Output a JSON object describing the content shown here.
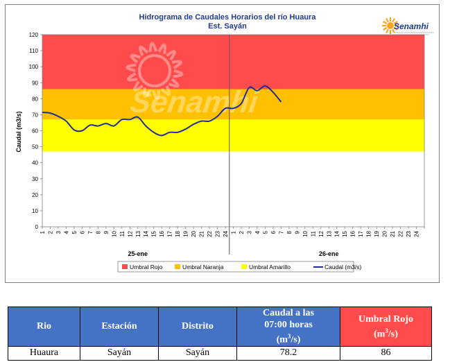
{
  "chart_data": {
    "type": "line",
    "title": "Hidrograma  de Caudales Horarios  del río Huaura",
    "subtitle": "Est. Sayán",
    "ylabel": "Caudal (m3/s)",
    "xlabel": "",
    "ylim": [
      0,
      120
    ],
    "yticks": [
      0,
      10,
      20,
      30,
      40,
      50,
      60,
      70,
      80,
      90,
      100,
      110,
      120
    ],
    "xticks": [
      "1",
      "2",
      "3",
      "4",
      "5",
      "6",
      "7",
      "8",
      "9",
      "10",
      "11",
      "12",
      "13",
      "14",
      "15",
      "16",
      "17",
      "18",
      "19",
      "20",
      "21",
      "22",
      "23",
      "24",
      "1",
      "2",
      "3",
      "4",
      "5",
      "6",
      "7",
      "8",
      "9",
      "10",
      "11",
      "12",
      "13",
      "14",
      "15",
      "16",
      "17",
      "18",
      "19",
      "20",
      "21",
      "22",
      "23",
      "24"
    ],
    "days": [
      "25-ene",
      "26-ene"
    ],
    "bands": [
      {
        "name": "Umbral Rojo",
        "from": 86,
        "to": 120,
        "color": "#ff4b4b"
      },
      {
        "name": "Umbral Naranja",
        "from": 67,
        "to": 86,
        "color": "#ffc000"
      },
      {
        "name": "Umbral Amarillo",
        "from": 47,
        "to": 67,
        "color": "#ffff00"
      }
    ],
    "series": [
      {
        "name": "Caudal (m3/s)",
        "color": "#1f2d9b",
        "x": [
          1,
          2,
          3,
          4,
          5,
          6,
          7,
          8,
          9,
          10,
          11,
          12,
          13,
          14,
          15,
          16,
          17,
          18,
          19,
          20,
          21,
          22,
          23,
          24,
          25,
          26,
          27,
          28,
          29,
          30,
          31
        ],
        "values": [
          71.5,
          71,
          69,
          66,
          60.5,
          60,
          63.5,
          63,
          64.5,
          63,
          67,
          67,
          68.5,
          63,
          59,
          57,
          59,
          59,
          61,
          64,
          66,
          66,
          69,
          74,
          74,
          77,
          87,
          85,
          88,
          84,
          78
        ]
      }
    ],
    "legend": [
      "Umbral Rojo",
      "Umbral Naranja",
      "Umbral Amarillo",
      "Caudal (m3/s)"
    ],
    "legend_position": "bottom",
    "grid": false
  },
  "logo": {
    "text": "Senamhi",
    "color": "#1f3a93",
    "sun_color": "#f5a623"
  },
  "watermark": {
    "text": "Senamhi"
  },
  "table": {
    "headers": {
      "rio": "Rio",
      "estacion": "Estación",
      "distrito": "Distrito",
      "caudal_line1": "Caudal a las",
      "caudal_line2": "07:00 horas",
      "caudal_unit": "(m",
      "caudal_unit_sup": "3",
      "caudal_unit_end": "/s)",
      "umbral_line1": "Umbral Rojo",
      "umbral_line2": "(m",
      "umbral_unit_sup": "3",
      "umbral_unit_end": "/s)"
    },
    "rows": [
      {
        "rio": "Huaura",
        "estacion": "Sayán",
        "distrito": "Sayán",
        "caudal": "78.2",
        "umbral": "86"
      }
    ]
  }
}
